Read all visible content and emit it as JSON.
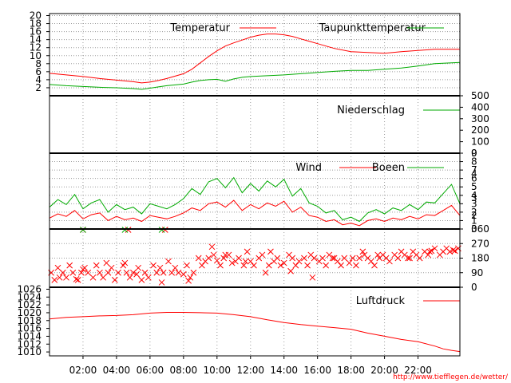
{
  "footer": {
    "url": "http://www.tiefflegen.de/wetter/"
  },
  "colors": {
    "red": "#ff0000",
    "green": "#00aa00",
    "grid": "#9a9a9a",
    "frame": "#000000"
  },
  "x_axis": {
    "type": "time",
    "range_hours": [
      0,
      24.5
    ],
    "tick_labels": [
      "02:00",
      "04:00",
      "06:00",
      "08:00",
      "10:00",
      "12:00",
      "14:00",
      "16:00",
      "18:00",
      "20:00",
      "22:00"
    ],
    "tick_hours": [
      2,
      4,
      6,
      8,
      10,
      12,
      14,
      16,
      18,
      20,
      22
    ]
  },
  "chart_data": [
    {
      "type": "line",
      "ylim": [
        0,
        20.5
      ],
      "yticks": [
        2,
        4,
        6,
        8,
        10,
        12,
        14,
        16,
        18,
        20
      ],
      "grid": true,
      "legend_position": "top-right",
      "series": [
        {
          "name": "Temperatur",
          "color": "#ff0000",
          "x": [
            0,
            1,
            2,
            3,
            4,
            5,
            5.5,
            6,
            6.5,
            7,
            8,
            8.5,
            9,
            9.5,
            10,
            10.5,
            11,
            11.5,
            12,
            12.5,
            13,
            13.5,
            14,
            14.5,
            15,
            16,
            17,
            18,
            19,
            20,
            21,
            22,
            23,
            24.5
          ],
          "y": [
            5.6,
            5.2,
            4.8,
            4.3,
            3.9,
            3.5,
            3.2,
            3.4,
            3.8,
            4.3,
            5.5,
            6.6,
            8.2,
            9.8,
            11.2,
            12.4,
            13.2,
            13.9,
            14.6,
            15.1,
            15.4,
            15.4,
            15.2,
            14.8,
            14.2,
            13.0,
            11.8,
            11.0,
            10.8,
            10.6,
            11.0,
            11.3,
            11.6,
            11.6
          ]
        },
        {
          "name": "Taupunkttemperatur",
          "color": "#00aa00",
          "x": [
            0,
            1,
            2,
            3,
            4,
            5,
            5.5,
            6,
            6.5,
            7,
            8,
            8.5,
            9,
            9.5,
            10,
            10.5,
            11,
            11.5,
            12,
            13,
            14,
            15,
            16,
            17,
            18,
            19,
            20,
            21,
            22,
            23,
            24.5
          ],
          "y": [
            2.8,
            2.5,
            2.3,
            2.1,
            2.0,
            1.8,
            1.6,
            1.9,
            2.2,
            2.5,
            2.9,
            3.4,
            3.8,
            4.0,
            4.1,
            3.6,
            4.2,
            4.6,
            4.8,
            5.0,
            5.2,
            5.5,
            5.8,
            6.1,
            6.3,
            6.3,
            6.6,
            6.9,
            7.4,
            8.0,
            8.3
          ]
        }
      ]
    },
    {
      "type": "line",
      "ylim": [
        0,
        500
      ],
      "yticks": [
        0,
        100,
        200,
        300,
        400,
        500
      ],
      "grid": false,
      "legend_position": "top-right",
      "series": [
        {
          "name": "Niederschlag",
          "color": "#00aa00",
          "x": [
            0,
            24.5
          ],
          "y": [
            0,
            0
          ]
        }
      ]
    },
    {
      "type": "line",
      "ylim": [
        0,
        9
      ],
      "yticks": [
        0,
        1,
        2,
        3,
        4,
        5,
        6,
        7,
        8,
        9
      ],
      "y2ticks": [
        2,
        3,
        4
      ],
      "y2tick_values": [
        1.6,
        3.7,
        6.6
      ],
      "grid": true,
      "legend_position": "top-right",
      "series": [
        {
          "name": "Wind",
          "color": "#ff0000",
          "x": [
            0,
            0.5,
            1,
            1.5,
            2,
            2.5,
            3,
            3.5,
            4,
            4.5,
            5,
            5.5,
            6,
            6.5,
            7,
            7.5,
            8,
            8.5,
            9,
            9.5,
            10,
            10.5,
            11,
            11.5,
            12,
            12.5,
            13,
            13.5,
            14,
            14.5,
            15,
            15.5,
            16,
            16.5,
            17,
            17.5,
            18,
            18.5,
            19,
            19.5,
            20,
            20.5,
            21,
            21.5,
            22,
            22.5,
            23,
            23.5,
            24,
            24.5
          ],
          "y": [
            1.3,
            1.8,
            1.5,
            2.2,
            1.2,
            1.7,
            1.9,
            1.0,
            1.5,
            1.1,
            1.3,
            0.9,
            1.6,
            1.4,
            1.2,
            1.5,
            1.9,
            2.5,
            2.2,
            3.0,
            3.2,
            2.6,
            3.4,
            2.2,
            2.9,
            2.4,
            3.1,
            2.7,
            3.3,
            2.0,
            2.6,
            1.6,
            1.4,
            0.9,
            1.1,
            0.5,
            0.7,
            0.4,
            1.0,
            1.2,
            0.9,
            1.3,
            1.1,
            1.5,
            1.2,
            1.7,
            1.6,
            2.2,
            2.8,
            1.6
          ]
        },
        {
          "name": "Boeen",
          "color": "#00aa00",
          "x": [
            0,
            0.5,
            1,
            1.5,
            2,
            2.5,
            3,
            3.5,
            4,
            4.5,
            5,
            5.5,
            6,
            6.5,
            7,
            7.5,
            8,
            8.5,
            9,
            9.5,
            10,
            10.5,
            11,
            11.5,
            12,
            12.5,
            13,
            13.5,
            14,
            14.5,
            15,
            15.5,
            16,
            16.5,
            17,
            17.5,
            18,
            18.5,
            19,
            19.5,
            20,
            20.5,
            21,
            21.5,
            22,
            22.5,
            23,
            23.5,
            24,
            24.5
          ],
          "y": [
            2.6,
            3.5,
            2.9,
            4.1,
            2.4,
            3.1,
            3.5,
            2.0,
            2.9,
            2.3,
            2.6,
            1.8,
            3.0,
            2.7,
            2.4,
            2.9,
            3.6,
            4.8,
            4.1,
            5.6,
            6.0,
            4.9,
            6.1,
            4.3,
            5.4,
            4.5,
            5.7,
            5.0,
            5.9,
            3.9,
            4.8,
            3.1,
            2.7,
            1.9,
            2.2,
            1.1,
            1.4,
            0.9,
            1.9,
            2.3,
            1.8,
            2.5,
            2.2,
            2.9,
            2.3,
            3.2,
            3.1,
            4.2,
            5.3,
            3.0
          ]
        }
      ]
    },
    {
      "type": "scatter",
      "ylim": [
        0,
        360
      ],
      "yticks": [
        0,
        90,
        180,
        270,
        360
      ],
      "grid": true,
      "color": "#ff0000",
      "marker": "x",
      "x": [
        0.1,
        0.3,
        0.5,
        0.8,
        1.0,
        1.2,
        1.4,
        1.7,
        1.9,
        2.1,
        2.3,
        2.6,
        2.8,
        3.0,
        3.2,
        3.5,
        3.7,
        3.9,
        4.1,
        4.4,
        4.6,
        4.8,
        5.0,
        5.3,
        5.5,
        5.7,
        5.9,
        6.2,
        6.4,
        6.6,
        6.8,
        7.1,
        7.3,
        7.5,
        7.7,
        8.0,
        8.2,
        8.4,
        8.6,
        8.9,
        9.1,
        9.3,
        9.5,
        9.8,
        10.0,
        10.2,
        10.4,
        10.7,
        10.9,
        11.1,
        11.3,
        11.6,
        11.8,
        12.0,
        12.2,
        12.5,
        12.7,
        12.9,
        13.1,
        13.4,
        13.6,
        13.8,
        14.0,
        14.3,
        14.5,
        14.7,
        14.9,
        15.2,
        15.4,
        15.6,
        15.8,
        16.1,
        16.3,
        16.5,
        16.7,
        17.0,
        17.2,
        17.4,
        17.6,
        17.9,
        18.1,
        18.3,
        18.5,
        18.8,
        19.0,
        19.2,
        19.4,
        19.7,
        19.9,
        20.1,
        20.3,
        20.6,
        20.8,
        21.0,
        21.2,
        21.5,
        21.7,
        21.9,
        22.1,
        22.4,
        22.6,
        22.8,
        23.0,
        23.3,
        23.5,
        23.7,
        23.9,
        24.2,
        24.4,
        0.6,
        1.6,
        2.0,
        3.4,
        4.5,
        5.2,
        6.7,
        8.3,
        9.7,
        10.5,
        11.7,
        13.2,
        14.4,
        15.7,
        16.9,
        18.7,
        19.6,
        21.4,
        22.7,
        24.1,
        2.0,
        4.7,
        6.9
      ],
      "y": [
        90,
        45,
        120,
        90,
        60,
        135,
        90,
        45,
        90,
        120,
        90,
        60,
        135,
        90,
        60,
        90,
        120,
        45,
        90,
        135,
        90,
        60,
        90,
        120,
        45,
        90,
        60,
        135,
        90,
        120,
        90,
        160,
        90,
        120,
        90,
        80,
        135,
        60,
        90,
        180,
        135,
        160,
        180,
        200,
        165,
        135,
        180,
        200,
        150,
        160,
        180,
        135,
        220,
        160,
        135,
        180,
        200,
        90,
        135,
        160,
        180,
        135,
        150,
        200,
        180,
        135,
        160,
        180,
        135,
        200,
        180,
        160,
        180,
        135,
        200,
        180,
        160,
        135,
        180,
        150,
        180,
        135,
        180,
        200,
        180,
        160,
        135,
        180,
        200,
        180,
        160,
        200,
        180,
        220,
        200,
        180,
        220,
        200,
        180,
        220,
        200,
        225,
        240,
        200,
        220,
        240,
        220,
        225,
        240,
        60,
        50,
        110,
        150,
        150,
        80,
        30,
        40,
        250,
        200,
        160,
        220,
        100,
        60,
        180,
        220,
        200,
        180,
        220,
        230,
        355,
        355,
        355
      ],
      "x_green": [
        2.0,
        4.5,
        6.7
      ],
      "y_green": [
        355,
        355,
        355
      ]
    },
    {
      "type": "line",
      "ylim": [
        1009,
        1026.5
      ],
      "yticks": [
        1010,
        1012,
        1014,
        1016,
        1018,
        1020,
        1022,
        1024,
        1026
      ],
      "grid": false,
      "legend_position": "top-right",
      "series": [
        {
          "name": "Luftdruck",
          "color": "#ff0000",
          "x": [
            0,
            1,
            2,
            3,
            4,
            5,
            6,
            7,
            8,
            9,
            10,
            11,
            12,
            13,
            14,
            15,
            16,
            17,
            18,
            19,
            20,
            21,
            22,
            23,
            23.5,
            24,
            24.5
          ],
          "y": [
            1018.4,
            1018.8,
            1019.0,
            1019.2,
            1019.3,
            1019.5,
            1019.9,
            1020.1,
            1020.1,
            1020.0,
            1019.9,
            1019.5,
            1019.0,
            1018.2,
            1017.5,
            1017.0,
            1016.6,
            1016.2,
            1015.8,
            1014.8,
            1014.0,
            1013.2,
            1012.6,
            1011.5,
            1010.8,
            1010.4,
            1010.1
          ]
        }
      ]
    }
  ]
}
